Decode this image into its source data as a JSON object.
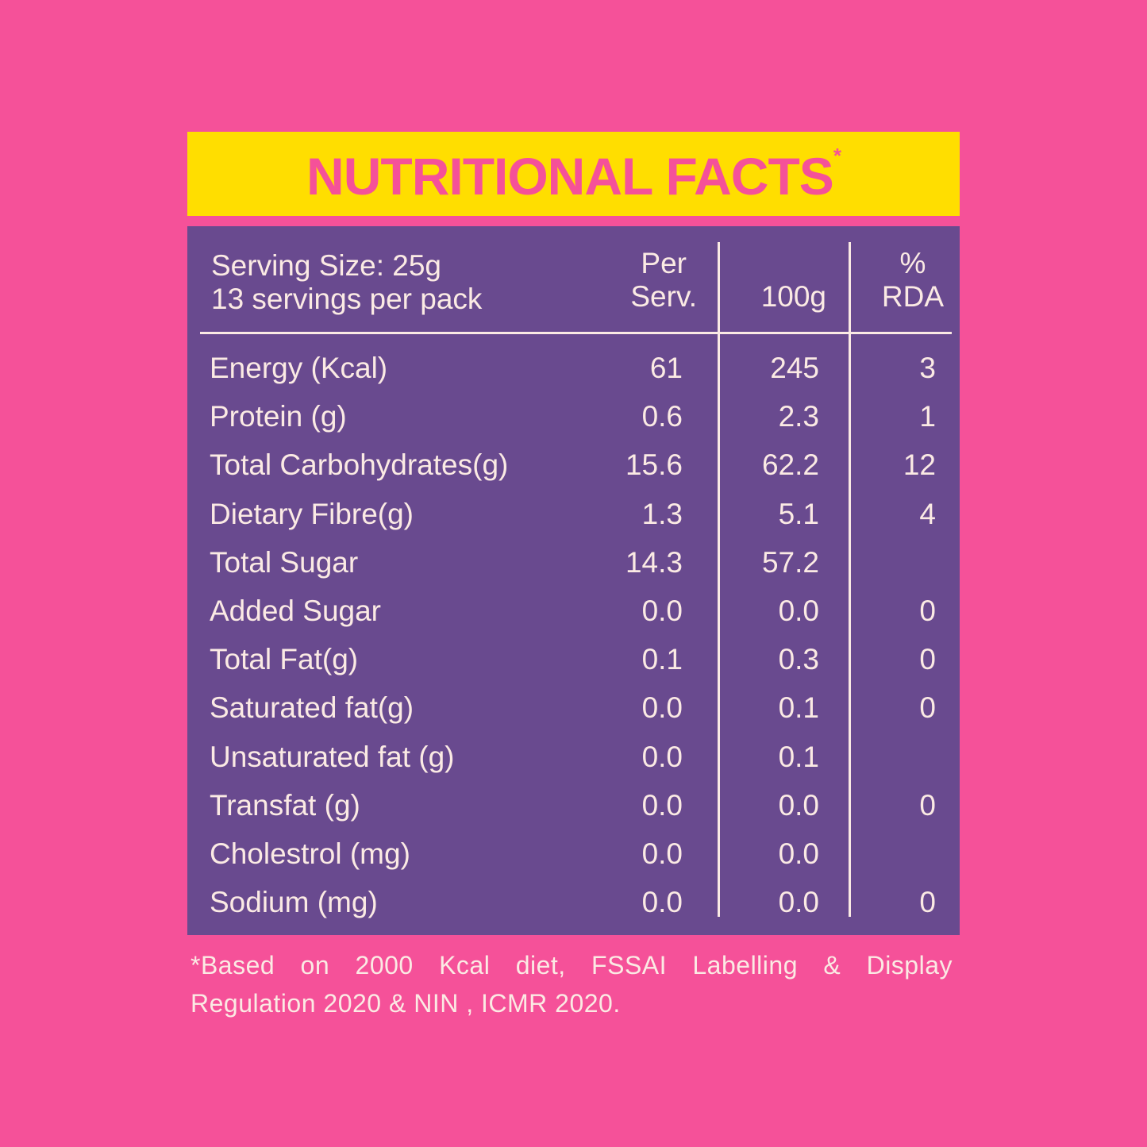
{
  "title": "NUTRITIONAL FACTS",
  "title_mark": "*",
  "header": {
    "serving_size": "Serving Size: 25g",
    "servings_per_pack": "13 servings per pack",
    "per_serv_line1": "Per",
    "per_serv_line2": "Serv.",
    "per_100g": "100g",
    "rda_line1": "%",
    "rda_line2": "RDA"
  },
  "rows": [
    {
      "label": "Energy (Kcal)",
      "per_serv": "61",
      "per_100g": "245",
      "rda": "3"
    },
    {
      "label": "Protein (g)",
      "per_serv": "0.6",
      "per_100g": "2.3",
      "rda": "1"
    },
    {
      "label": "Total Carbohydrates(g)",
      "per_serv": "15.6",
      "per_100g": "62.2",
      "rda": "12"
    },
    {
      "label": "Dietary Fibre(g)",
      "per_serv": "1.3",
      "per_100g": "5.1",
      "rda": "4"
    },
    {
      "label": "Total Sugar",
      "per_serv": "14.3",
      "per_100g": "57.2",
      "rda": ""
    },
    {
      "label": "Added Sugar",
      "per_serv": "0.0",
      "per_100g": "0.0",
      "rda": "0"
    },
    {
      "label": "Total Fat(g)",
      "per_serv": "0.1",
      "per_100g": "0.3",
      "rda": "0"
    },
    {
      "label": "Saturated fat(g)",
      "per_serv": "0.0",
      "per_100g": "0.1",
      "rda": "0"
    },
    {
      "label": "Unsaturated fat (g)",
      "per_serv": "0.0",
      "per_100g": "0.1",
      "rda": ""
    },
    {
      "label": "Transfat (g)",
      "per_serv": "0.0",
      "per_100g": "0.0",
      "rda": "0"
    },
    {
      "label": "Cholestrol (mg)",
      "per_serv": "0.0",
      "per_100g": "0.0",
      "rda": ""
    },
    {
      "label": "Sodium (mg)",
      "per_serv": "0.0",
      "per_100g": "0.0",
      "rda": "0"
    }
  ],
  "footnote": {
    "line1": "*Based on 2000 Kcal diet, FSSAI Labelling & Display",
    "line2": "Regulation 2020 & NIN , ICMR 2020."
  },
  "colors": {
    "background": "#F55199",
    "banner": "#FFDE00",
    "panel": "#694A8F",
    "text": "#FBEAE4"
  }
}
